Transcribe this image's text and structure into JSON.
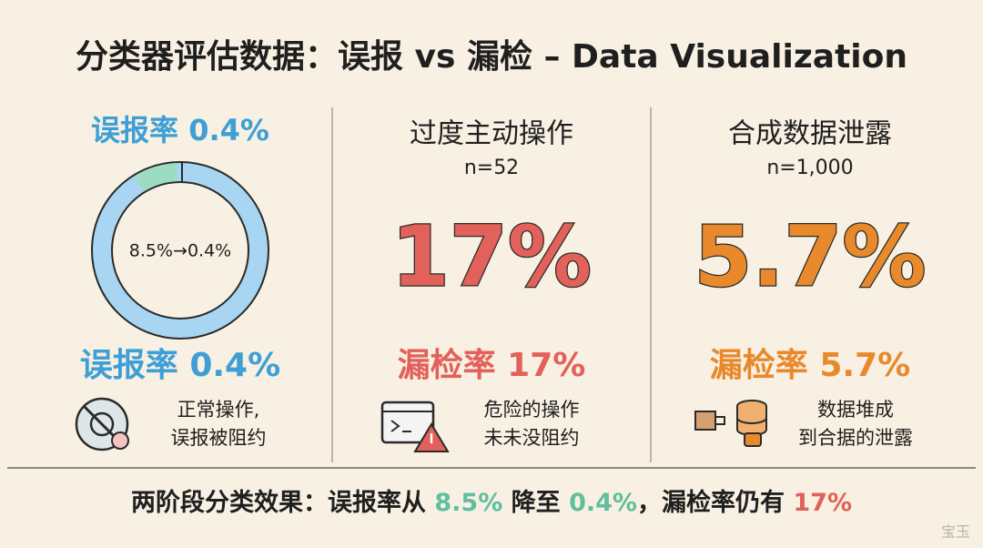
{
  "title": "分类器评估数据：误报 vs 漏检 – Data Visualization",
  "panels": [
    {
      "heading": "误报率 0.4%",
      "donut_label": "8.5%→0.4%",
      "metric": "误报率 0.4%",
      "note": [
        "正常操作,",
        "误报被阻约"
      ]
    },
    {
      "heading": "过度主动操作",
      "sample": "n=52",
      "big": "17%",
      "metric": "漏检率 17%",
      "note": [
        "危险的操作",
        "未未没阻约"
      ]
    },
    {
      "heading": "合成数据泄露",
      "sample": "n=1,000",
      "big": "5.7%",
      "metric": "漏检率 5.7%",
      "note": [
        "数据堆成",
        "到合据的泄露"
      ]
    }
  ],
  "footer": [
    "两阶段分类效果：误报率从 ",
    "8.5%",
    " 降至 ",
    "0.4%",
    "，漏检率仍有 ",
    "17%"
  ],
  "watermark": "宝玉"
}
